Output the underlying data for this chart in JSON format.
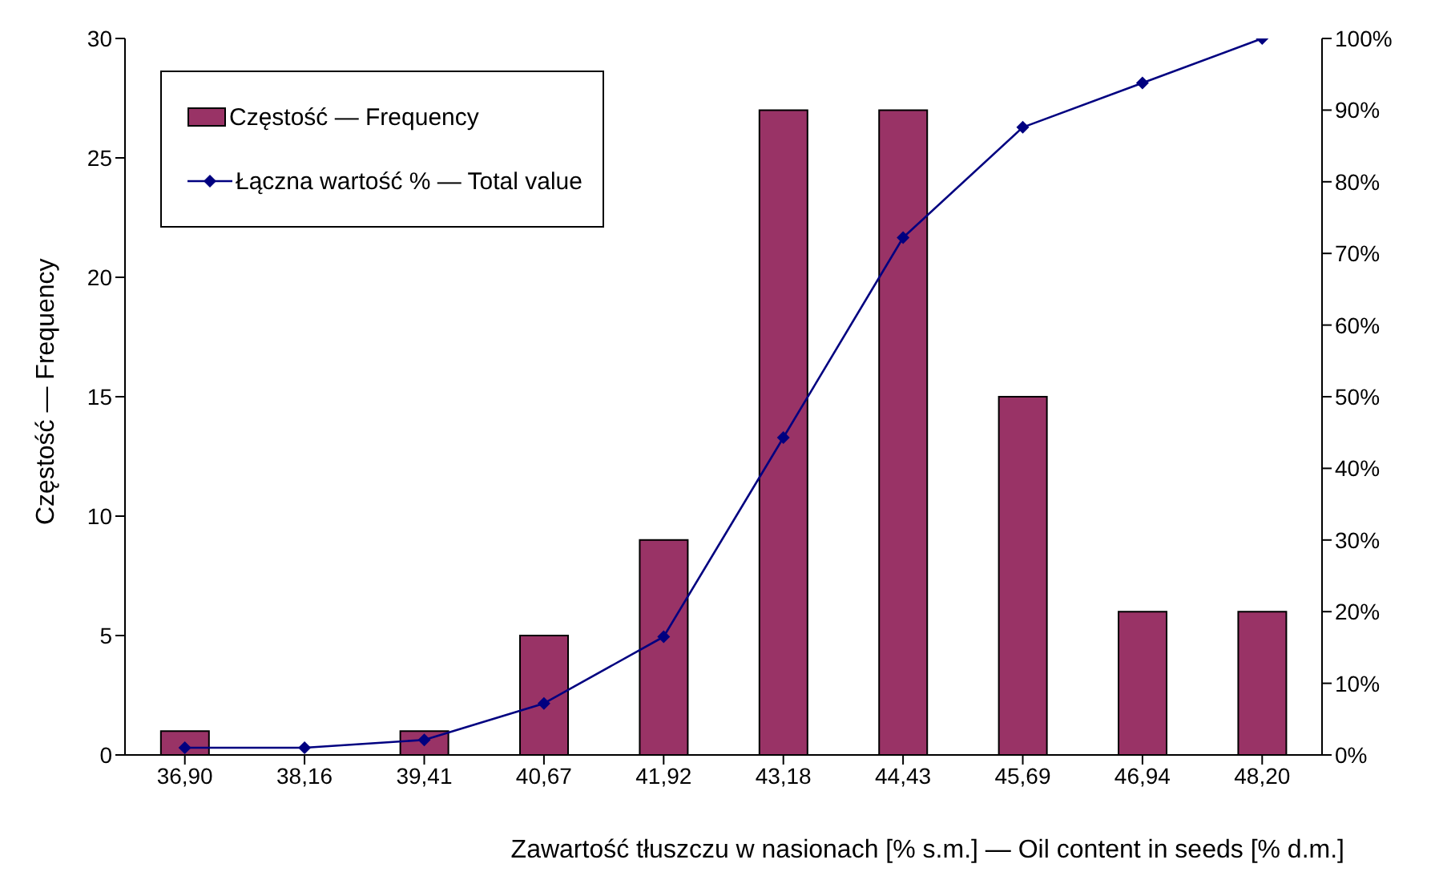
{
  "chart_data": {
    "type": "bar",
    "xlabel": "Zawartość tłuszczu w nasionach [% s.m.] — Oil content in seeds [% d.m.]",
    "ylabel": "Częstość — Frequency",
    "categories": [
      "36,90",
      "38,16",
      "39,41",
      "40,67",
      "41,92",
      "43,18",
      "44,43",
      "45,69",
      "46,94",
      "48,20"
    ],
    "series": [
      {
        "name": "Częstość — Frequency",
        "color": "#993366",
        "values": [
          1,
          0,
          1,
          5,
          9,
          27,
          27,
          15,
          6,
          6
        ]
      },
      {
        "name": "Łączna wartość % — Total value",
        "type": "line",
        "axis": "y2",
        "color": "#000080",
        "marker": "diamond",
        "values": [
          1.0,
          1.0,
          2.1,
          7.2,
          16.5,
          44.3,
          72.2,
          87.6,
          93.8,
          100
        ]
      }
    ],
    "ylim": [
      0,
      30
    ],
    "yticks": [
      0,
      5,
      10,
      15,
      20,
      25,
      30
    ],
    "y2lim": [
      0,
      100
    ],
    "y2ticks": [
      {
        "value": 0,
        "label": "0%"
      },
      {
        "value": 10,
        "label": "10%"
      },
      {
        "value": 20,
        "label": "20%"
      },
      {
        "value": 30,
        "label": "30%"
      },
      {
        "value": 40,
        "label": "40%"
      },
      {
        "value": 50,
        "label": "50%"
      },
      {
        "value": 60,
        "label": "60%"
      },
      {
        "value": 70,
        "label": "70%"
      },
      {
        "value": 80,
        "label": "80%"
      },
      {
        "value": 90,
        "label": "90%"
      },
      {
        "value": 100,
        "label": "100%"
      }
    ],
    "grid": false,
    "legend": "top left"
  }
}
